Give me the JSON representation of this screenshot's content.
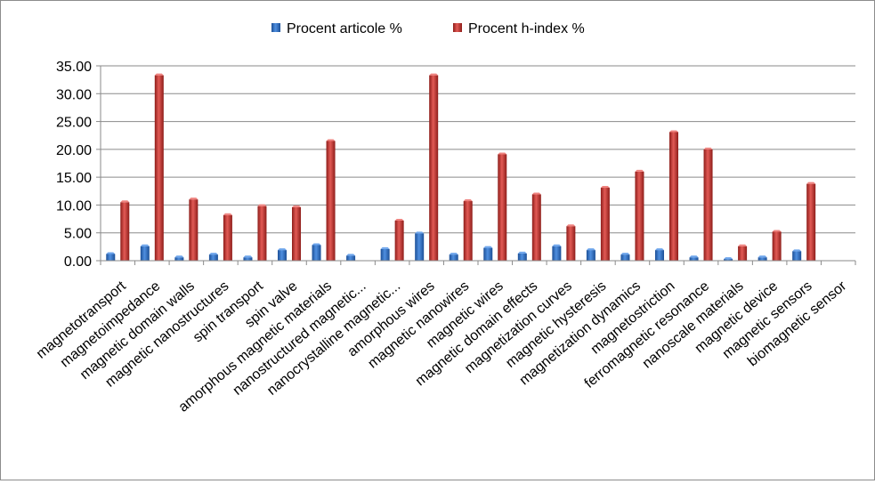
{
  "chart_data": {
    "type": "bar",
    "title": "",
    "xlabel": "",
    "ylabel": "",
    "ylim": [
      0,
      35
    ],
    "y_ticks": [
      "0.00",
      "5.00",
      "10.00",
      "15.00",
      "20.00",
      "25.00",
      "30.00",
      "35.00"
    ],
    "grid": true,
    "legend_position": "top",
    "categories": [
      "magnetotransport",
      "magnetoimpedance",
      "magnetic domain walls",
      "magnetic nanostructures",
      "spin transport",
      "spin valve",
      "amorphous magnetic materials",
      "nanostructured magnetic...",
      "nanocrystalline magnetic...",
      "amorphous wires",
      "magnetic nanowires",
      "magnetic wires",
      "magnetic domain effects",
      "magnetization curves",
      "magnetic hysteresis",
      "magnetization dynamics",
      "magnetostriction",
      "ferromagnetic resonance",
      "nanoscale materials",
      "magnetic device",
      "magnetic sensors",
      "biomagnetic sensor"
    ],
    "series": [
      {
        "name": "Procent articole %",
        "color": "#2f6fc4",
        "values": [
          1.2,
          2.6,
          0.6,
          1.1,
          0.6,
          1.9,
          2.8,
          0.9,
          2.1,
          4.9,
          1.1,
          2.3,
          1.3,
          2.6,
          1.9,
          1.1,
          1.9,
          0.6,
          0.3,
          0.6,
          1.7,
          0.0
        ]
      },
      {
        "name": "Procent h-index %",
        "color": "#c0302c",
        "values": [
          10.5,
          33.3,
          11.0,
          8.2,
          9.8,
          9.6,
          21.5,
          0.0,
          7.2,
          33.3,
          10.7,
          19.1,
          11.9,
          6.2,
          13.1,
          16.0,
          23.1,
          20.0,
          2.6,
          5.2,
          13.8,
          0.0
        ]
      }
    ]
  }
}
